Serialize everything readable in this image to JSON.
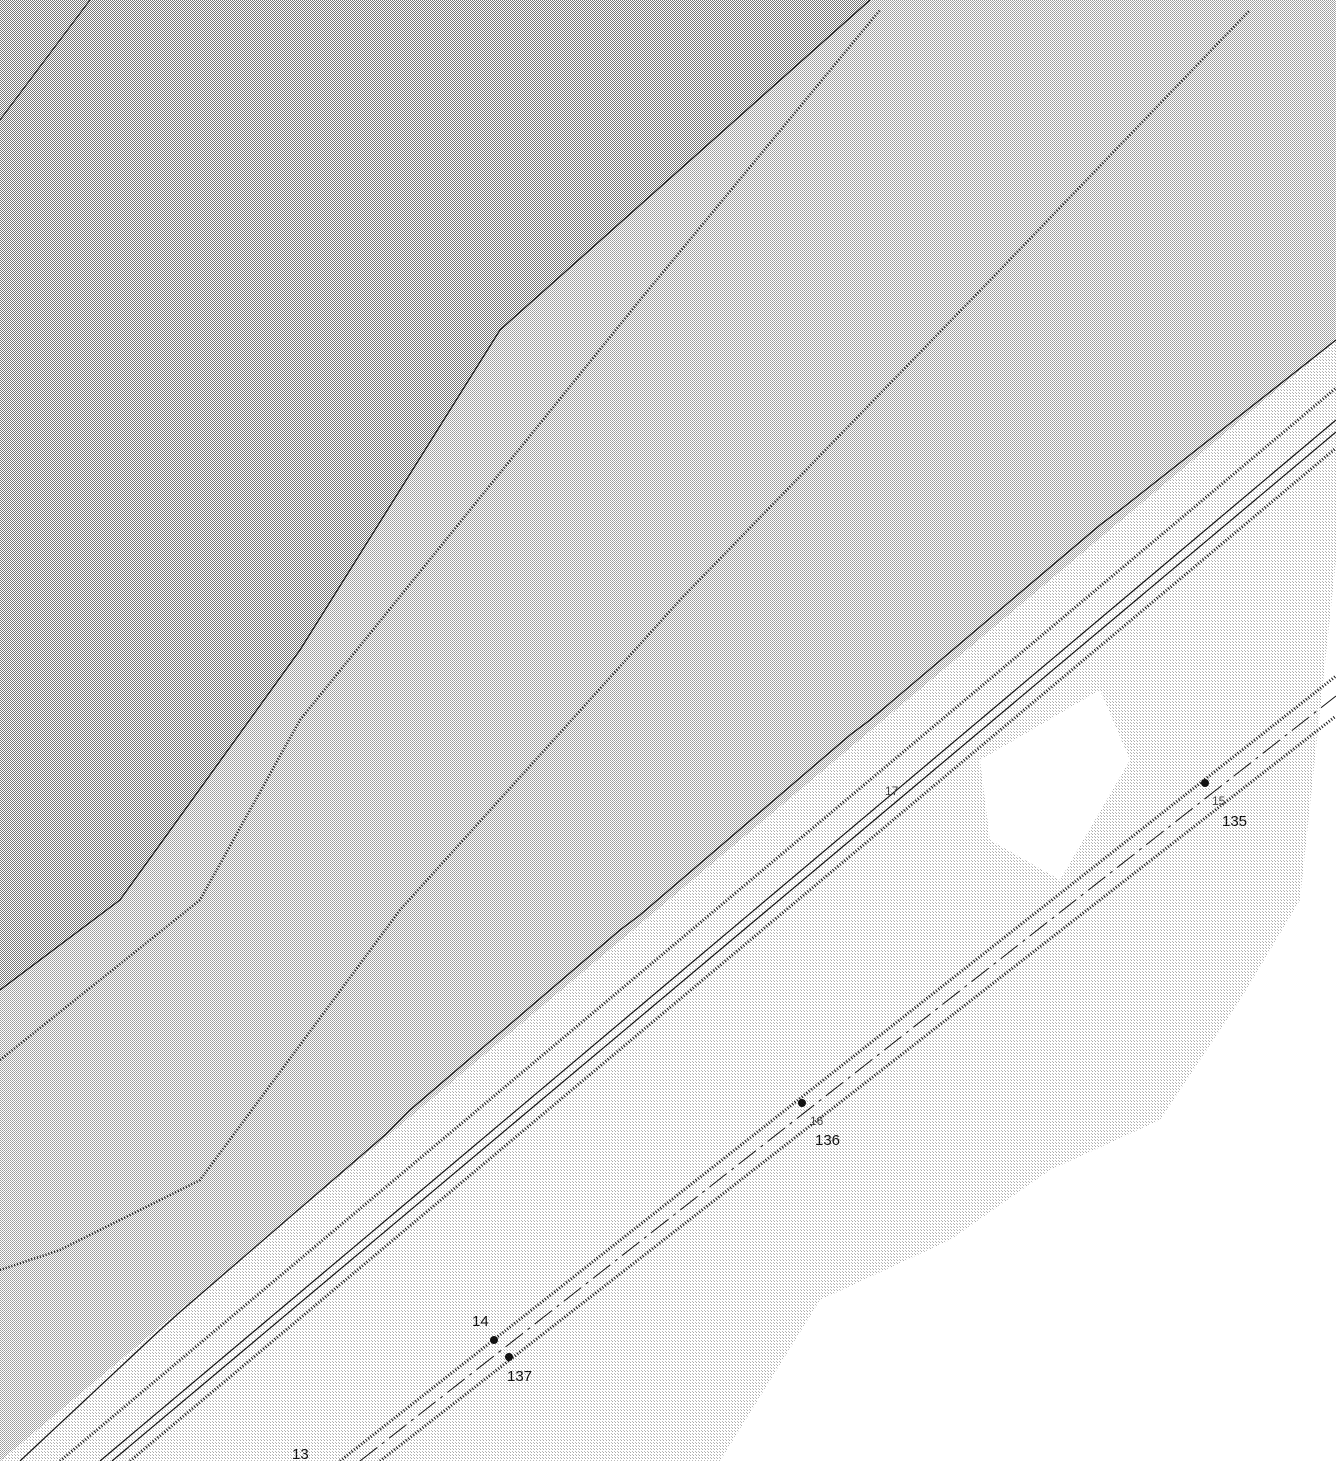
{
  "labels": [
    "135",
    "136",
    "137",
    "14",
    "13",
    "15",
    "16",
    "17"
  ]
}
